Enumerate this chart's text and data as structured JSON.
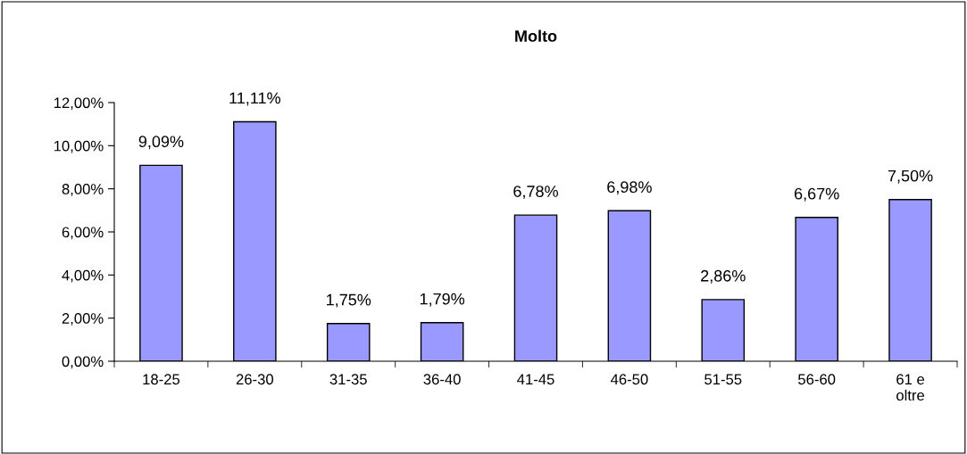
{
  "chart_data": {
    "type": "bar",
    "title": "Molto",
    "categories": [
      "18-25",
      "26-30",
      "31-35",
      "36-40",
      "41-45",
      "46-50",
      "51-55",
      "56-60",
      "61 e\noltre"
    ],
    "values": [
      9.09,
      11.11,
      1.75,
      1.79,
      6.78,
      6.98,
      2.86,
      6.67,
      7.5
    ],
    "value_labels": [
      "9,09%",
      "11,11%",
      "1,75%",
      "1,79%",
      "6,78%",
      "6,98%",
      "2,86%",
      "6,67%",
      "7,50%"
    ],
    "color": "#9999ff",
    "ylim": [
      0,
      12
    ],
    "yticks": [
      {
        "value": 0,
        "label": "0,00%"
      },
      {
        "value": 2,
        "label": "2,00%"
      },
      {
        "value": 4,
        "label": "4,00%"
      },
      {
        "value": 6,
        "label": "6,00%"
      },
      {
        "value": 8,
        "label": "8,00%"
      },
      {
        "value": 10,
        "label": "10,00%"
      },
      {
        "value": 12,
        "label": "12,00%"
      }
    ],
    "grid": false,
    "legend": false
  }
}
